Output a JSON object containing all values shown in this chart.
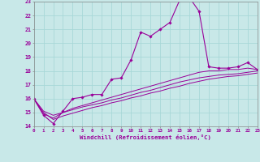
{
  "xlabel": "Windchill (Refroidissement éolien,°C)",
  "bg_color": "#c8e8e8",
  "grid_color": "#a8d8d8",
  "line_color": "#990099",
  "xmin": 0,
  "xmax": 23,
  "ymin": 14,
  "ymax": 23,
  "line1_x": [
    0,
    1,
    2,
    3,
    4,
    5,
    6,
    7,
    8,
    9,
    10,
    11,
    12,
    13,
    14,
    15,
    16,
    17,
    18,
    19,
    20,
    21,
    22,
    23
  ],
  "line1_y": [
    16.0,
    14.8,
    14.2,
    15.1,
    16.0,
    16.1,
    16.3,
    16.3,
    17.4,
    17.5,
    18.8,
    20.8,
    20.5,
    21.0,
    21.5,
    23.1,
    23.3,
    22.3,
    18.3,
    18.2,
    18.2,
    18.3,
    18.6,
    18.1
  ],
  "line2_x": [
    0,
    1,
    2,
    3,
    4,
    5,
    6,
    7,
    8,
    9,
    10,
    11,
    12,
    13,
    14,
    15,
    16,
    17,
    18,
    19,
    20,
    21,
    22,
    23
  ],
  "line2_y": [
    16.0,
    14.9,
    14.6,
    15.0,
    15.3,
    15.5,
    15.7,
    15.9,
    16.1,
    16.3,
    16.5,
    16.7,
    16.9,
    17.1,
    17.3,
    17.5,
    17.7,
    17.9,
    18.0,
    18.0,
    18.1,
    18.1,
    18.2,
    18.1
  ],
  "line3_x": [
    0,
    1,
    2,
    3,
    4,
    5,
    6,
    7,
    8,
    9,
    10,
    11,
    12,
    13,
    14,
    15,
    16,
    17,
    18,
    19,
    20,
    21,
    22,
    23
  ],
  "line3_y": [
    16.0,
    15.1,
    14.8,
    15.0,
    15.2,
    15.4,
    15.55,
    15.7,
    15.9,
    16.05,
    16.25,
    16.45,
    16.6,
    16.8,
    17.0,
    17.2,
    17.35,
    17.5,
    17.6,
    17.7,
    17.75,
    17.8,
    17.9,
    18.0
  ],
  "line4_x": [
    0,
    1,
    2,
    3,
    4,
    5,
    6,
    7,
    8,
    9,
    10,
    11,
    12,
    13,
    14,
    15,
    16,
    17,
    18,
    19,
    20,
    21,
    22,
    23
  ],
  "line4_y": [
    16.0,
    15.0,
    14.5,
    14.75,
    14.95,
    15.15,
    15.35,
    15.5,
    15.7,
    15.85,
    16.05,
    16.2,
    16.4,
    16.55,
    16.75,
    16.9,
    17.1,
    17.25,
    17.4,
    17.5,
    17.6,
    17.65,
    17.75,
    17.85
  ]
}
